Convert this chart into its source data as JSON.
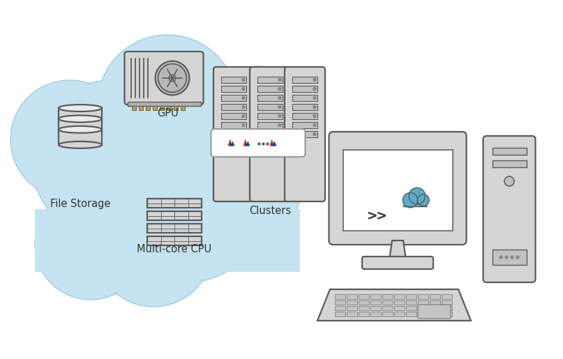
{
  "bg_color": "#ffffff",
  "cloud_color": "#c5e3f0",
  "cloud_edge": "#a0cce0",
  "icon_fill": "#d8d8d8",
  "icon_edge": "#5a5a5a",
  "text_color": "#333333",
  "label_fontsize": 10.5,
  "labels": {
    "gpu": "GPU",
    "file_storage": "File Storage",
    "multi_core": "Multi-core CPU",
    "clusters": "Clusters"
  },
  "matlab_red": "#cc2200",
  "matlab_blue": "#0044aa",
  "server_fill": "#d8d8d8",
  "screen_fill": "#f0f0f0"
}
